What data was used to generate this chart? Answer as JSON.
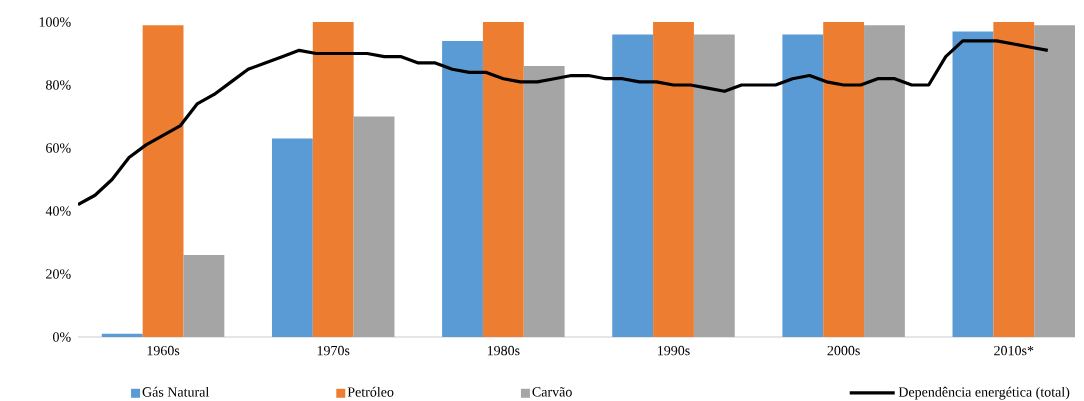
{
  "chart_data": [
    {
      "type": "bar",
      "categories": [
        "1960s",
        "1970s",
        "1980s",
        "1990s",
        "2000s",
        "2010s*"
      ],
      "series": [
        {
          "name": "Gás Natural",
          "color": "#5b9bd5",
          "values": [
            1,
            63,
            94,
            96,
            96,
            97
          ]
        },
        {
          "name": "Petróleo",
          "color": "#ed7d31",
          "values": [
            99,
            100,
            100,
            100,
            100,
            100
          ]
        },
        {
          "name": "Carvão",
          "color": "#a5a5a5",
          "values": [
            26,
            70,
            86,
            96,
            99,
            99
          ]
        }
      ],
      "ylim": [
        0,
        100
      ],
      "yticks": [
        {
          "value": 0,
          "label": "0%"
        },
        {
          "value": 20,
          "label": "20%"
        },
        {
          "value": 40,
          "label": "40%"
        },
        {
          "value": 60,
          "label": "60%"
        },
        {
          "value": 80,
          "label": "80%"
        },
        {
          "value": 100,
          "label": "100%"
        }
      ],
      "legend": "bottom"
    },
    {
      "type": "line",
      "categories": [
        null,
        null,
        null,
        null,
        null,
        null,
        null,
        null,
        null,
        null,
        null,
        null,
        null,
        null,
        null,
        null,
        null,
        null,
        null,
        null,
        null,
        null,
        null,
        null,
        null,
        null,
        null,
        null,
        null,
        null,
        null,
        null,
        null,
        null,
        null,
        null,
        null,
        null,
        null,
        null,
        null,
        null,
        null,
        null,
        null,
        null,
        null,
        null,
        null,
        null,
        null,
        null,
        null,
        null,
        null,
        null,
        null,
        null
      ],
      "series": [
        {
          "name": "Dependência energética (total)",
          "color": "#000000",
          "values": [
            42,
            45,
            50,
            57,
            61,
            64,
            67,
            74,
            77,
            81,
            85,
            87,
            89,
            91,
            90,
            90,
            90,
            90,
            89,
            89,
            87,
            87,
            85,
            84,
            84,
            82,
            81,
            81,
            82,
            83,
            83,
            82,
            82,
            81,
            81,
            80,
            80,
            79,
            78,
            80,
            80,
            80,
            82,
            83,
            81,
            80,
            80,
            82,
            82,
            80,
            80,
            89,
            94,
            94,
            94,
            93,
            92,
            91
          ]
        }
      ],
      "ylim": [
        0,
        100
      ],
      "tick_labels": false,
      "legend": "bottom right"
    }
  ]
}
